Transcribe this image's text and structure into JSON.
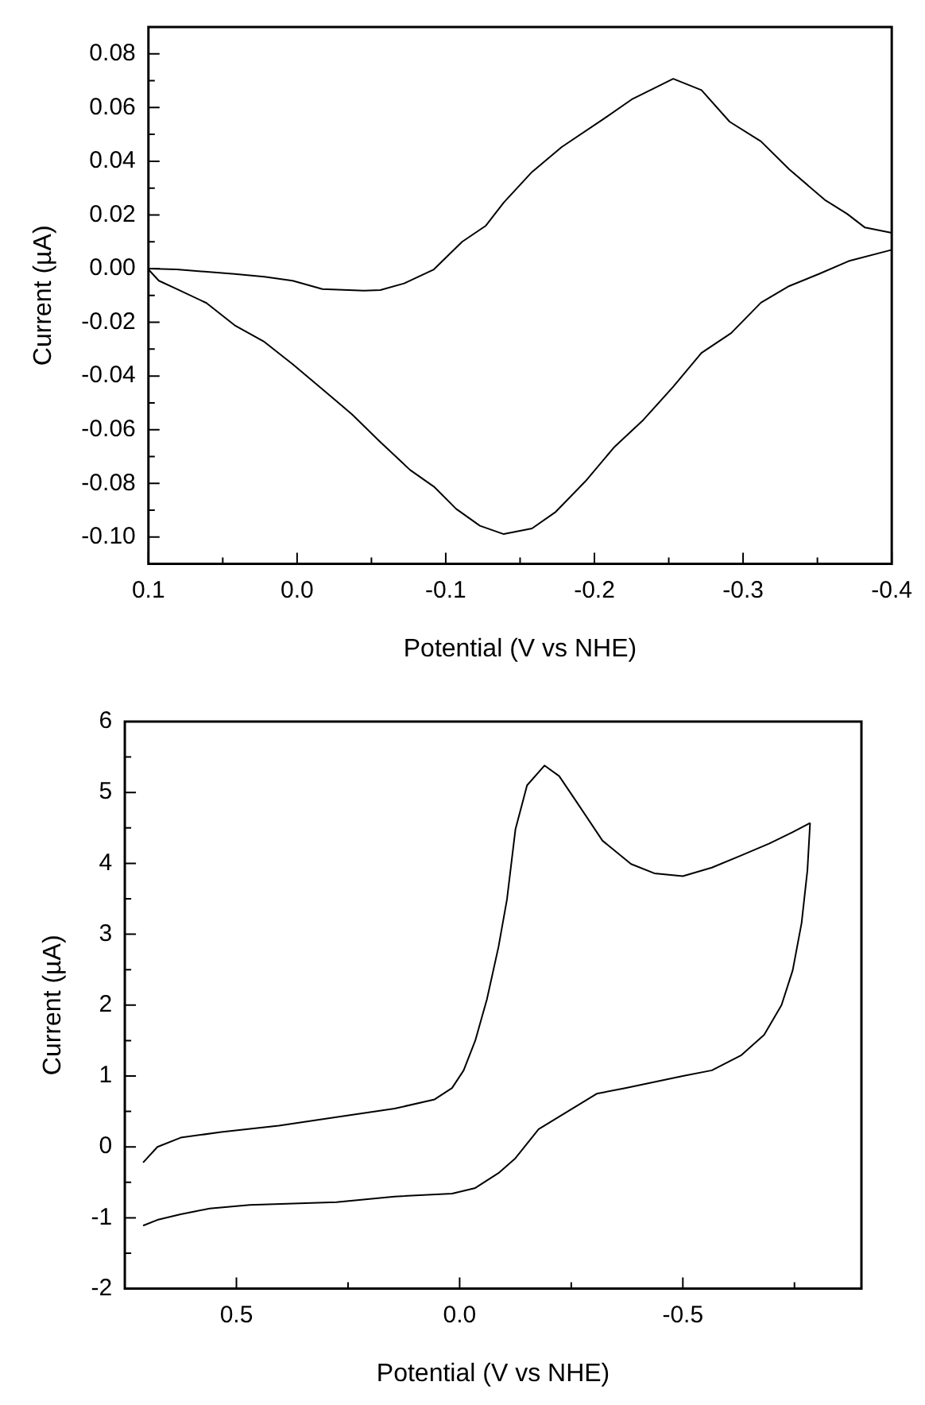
{
  "chart_data": [
    {
      "type": "line",
      "xlabel": "Potential (V vs NHE)",
      "ylabel": "Current (µA)",
      "marker": "none",
      "line_style": "solid",
      "xlim": [
        0.1,
        -0.4
      ],
      "ylim": [
        -0.11,
        0.09
      ],
      "xticks": [
        {
          "value": 0.1,
          "label": "0.1"
        },
        {
          "value": 0.05,
          "label": null
        },
        {
          "value": 0,
          "label": "0.0"
        },
        {
          "value": -0.05,
          "label": null
        },
        {
          "value": -0.1,
          "label": "-0.1"
        },
        {
          "value": -0.15,
          "label": null
        },
        {
          "value": -0.2,
          "label": "-0.2"
        },
        {
          "value": -0.25,
          "label": null
        },
        {
          "value": -0.3,
          "label": "-0.3"
        },
        {
          "value": -0.35,
          "label": null
        },
        {
          "value": -0.4,
          "label": "-0.4"
        }
      ],
      "yticks": [
        {
          "value": -0.1,
          "label": "-0.10"
        },
        {
          "value": -0.09,
          "label": null
        },
        {
          "value": -0.08,
          "label": "-0.08"
        },
        {
          "value": -0.07,
          "label": null
        },
        {
          "value": -0.06,
          "label": "-0.06"
        },
        {
          "value": -0.05,
          "label": null
        },
        {
          "value": -0.04,
          "label": "-0.04"
        },
        {
          "value": -0.03,
          "label": null
        },
        {
          "value": -0.02,
          "label": "-0.02"
        },
        {
          "value": -0.01,
          "label": null
        },
        {
          "value": 0,
          "label": "0.00"
        },
        {
          "value": 0.01,
          "label": null
        },
        {
          "value": 0.02,
          "label": "0.02"
        },
        {
          "value": 0.03,
          "label": null
        },
        {
          "value": 0.04,
          "label": "0.04"
        },
        {
          "value": 0.05,
          "label": null
        },
        {
          "value": 0.06,
          "label": "0.06"
        },
        {
          "value": 0.07,
          "label": null
        },
        {
          "value": 0.08,
          "label": "0.08"
        }
      ],
      "series": [
        {
          "color": "#000000",
          "x": [
            0.1,
            0.081,
            0.042,
            0.022,
            0.003,
            -0.017,
            -0.045,
            -0.056,
            -0.072,
            -0.092,
            -0.111,
            -0.127,
            -0.139,
            -0.158,
            -0.178,
            -0.206,
            -0.225,
            -0.253,
            -0.272,
            -0.291,
            -0.312,
            -0.331,
            -0.355,
            -0.37,
            -0.382,
            -0.4
          ],
          "values": [
            0.0,
            -0.0003,
            -0.002,
            -0.003,
            -0.0045,
            -0.0076,
            -0.0082,
            -0.008,
            -0.0055,
            -0.0003,
            0.01,
            0.016,
            0.0246,
            0.036,
            0.0453,
            0.0557,
            0.063,
            0.0707,
            0.0665,
            0.0547,
            0.0474,
            0.037,
            0.0256,
            0.0204,
            0.0153,
            0.0133
          ]
        },
        {
          "color": "#000000",
          "x": [
            -0.4,
            -0.371,
            -0.351,
            -0.331,
            -0.312,
            -0.292,
            -0.272,
            -0.253,
            -0.233,
            -0.213,
            -0.194,
            -0.174,
            -0.158,
            -0.139,
            -0.123,
            -0.107,
            -0.092,
            -0.076,
            -0.056,
            -0.037,
            -0.017,
            0.003,
            0.022,
            0.042,
            0.061,
            0.081,
            0.093,
            0.1
          ],
          "values": [
            0.007,
            0.0028,
            -0.002,
            -0.0065,
            -0.0127,
            -0.024,
            -0.0314,
            -0.044,
            -0.0563,
            -0.0667,
            -0.0792,
            -0.0906,
            -0.0968,
            -0.0989,
            -0.0958,
            -0.0895,
            -0.0812,
            -0.075,
            -0.0646,
            -0.0543,
            -0.0449,
            -0.0356,
            -0.0273,
            -0.0211,
            -0.0128,
            -0.0076,
            -0.0045,
            -0.0003
          ]
        }
      ]
    },
    {
      "type": "line",
      "xlabel": "Potential (V vs NHE)",
      "ylabel": "Current (µA)",
      "marker": "none",
      "line_style": "solid",
      "xlim": [
        0.75,
        -0.9
      ],
      "ylim": [
        -2,
        6
      ],
      "xticks": [
        {
          "value": 0.5,
          "label": "0.5"
        },
        {
          "value": 0.25,
          "label": null
        },
        {
          "value": 0,
          "label": "0.0"
        },
        {
          "value": -0.25,
          "label": null
        },
        {
          "value": -0.5,
          "label": "-0.5"
        },
        {
          "value": -0.75,
          "label": null
        }
      ],
      "yticks": [
        -2,
        {
          "value": -1.5,
          "label": null
        },
        -1,
        {
          "value": -0.5,
          "label": null
        },
        0,
        {
          "value": 0.5,
          "label": null
        },
        1,
        {
          "value": 1.5,
          "label": null
        },
        2,
        {
          "value": 2.5,
          "label": null
        },
        3,
        {
          "value": 3.5,
          "label": null
        },
        4,
        {
          "value": 4.5,
          "label": null
        },
        5,
        {
          "value": 5.5,
          "label": null
        },
        6
      ],
      "series": [
        {
          "color": "#000000",
          "x": [
            0.709,
            0.677,
            0.625,
            0.534,
            0.405,
            0.276,
            0.146,
            0.056,
            0.017,
            -0.009,
            -0.035,
            -0.061,
            -0.087,
            -0.106,
            -0.125,
            -0.151,
            -0.19,
            -0.223,
            -0.268,
            -0.32,
            -0.384,
            -0.436,
            -0.5,
            -0.565,
            -0.63,
            -0.694,
            -0.746,
            -0.785
          ],
          "values": [
            -0.22,
            0.0,
            0.13,
            0.21,
            0.3,
            0.42,
            0.54,
            0.67,
            0.83,
            1.08,
            1.5,
            2.08,
            2.82,
            3.49,
            4.48,
            5.1,
            5.38,
            5.23,
            4.81,
            4.32,
            3.99,
            3.86,
            3.82,
            3.94,
            4.11,
            4.28,
            4.44,
            4.57
          ]
        },
        {
          "color": "#000000",
          "x": [
            -0.785,
            -0.779,
            -0.766,
            -0.746,
            -0.721,
            -0.682,
            -0.63,
            -0.565,
            -0.5,
            -0.371,
            -0.307,
            -0.242,
            -0.177,
            -0.125,
            -0.087,
            -0.035,
            0.017,
            0.146,
            0.276,
            0.47,
            0.56,
            0.625,
            0.677,
            0.709
          ],
          "values": [
            4.57,
            3.9,
            3.16,
            2.49,
            2.0,
            1.58,
            1.29,
            1.08,
            1.0,
            0.83,
            0.75,
            0.5,
            0.25,
            -0.16,
            -0.37,
            -0.58,
            -0.66,
            -0.7,
            -0.78,
            -0.82,
            -0.87,
            -0.95,
            -1.03,
            -1.11
          ]
        }
      ]
    }
  ]
}
